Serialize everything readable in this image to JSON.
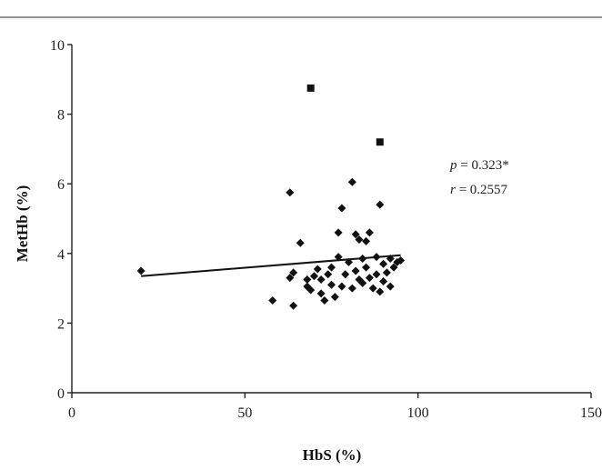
{
  "chart_data": {
    "type": "scatter",
    "xlabel": "HbS (%)",
    "ylabel": "MetHb (%)",
    "xlim": [
      0,
      150
    ],
    "ylim": [
      0,
      10
    ],
    "x_ticks": [
      0,
      50,
      100,
      150
    ],
    "y_ticks": [
      0,
      2,
      4,
      6,
      8,
      10
    ],
    "x_tick_labels": [
      "0",
      "50",
      "100",
      "150"
    ],
    "y_tick_labels": [
      "0",
      "2",
      "4",
      "6",
      "8",
      "10"
    ],
    "grid": false,
    "annotations": [
      {
        "var": "p",
        "text": " = 0.323*"
      },
      {
        "var": "r",
        "text": " = 0.2557"
      }
    ],
    "trendline": {
      "x": [
        20,
        95
      ],
      "y": [
        3.35,
        3.95
      ]
    },
    "points": [
      {
        "x": 20,
        "y": 3.5
      },
      {
        "x": 58,
        "y": 2.65
      },
      {
        "x": 63,
        "y": 3.3
      },
      {
        "x": 63,
        "y": 5.75
      },
      {
        "x": 64,
        "y": 2.5
      },
      {
        "x": 64,
        "y": 3.45
      },
      {
        "x": 66,
        "y": 4.3
      },
      {
        "x": 68,
        "y": 3.25
      },
      {
        "x": 68,
        "y": 3.05
      },
      {
        "x": 69,
        "y": 2.95
      },
      {
        "x": 70,
        "y": 3.35
      },
      {
        "x": 71,
        "y": 3.55
      },
      {
        "x": 72,
        "y": 2.85
      },
      {
        "x": 72,
        "y": 3.25
      },
      {
        "x": 73,
        "y": 2.65
      },
      {
        "x": 74,
        "y": 3.4
      },
      {
        "x": 75,
        "y": 3.6
      },
      {
        "x": 75,
        "y": 3.1
      },
      {
        "x": 76,
        "y": 2.75
      },
      {
        "x": 77,
        "y": 4.6
      },
      {
        "x": 77,
        "y": 3.9
      },
      {
        "x": 78,
        "y": 3.05
      },
      {
        "x": 78,
        "y": 5.3
      },
      {
        "x": 79,
        "y": 3.4
      },
      {
        "x": 80,
        "y": 3.75
      },
      {
        "x": 81,
        "y": 6.05
      },
      {
        "x": 81,
        "y": 3.0
      },
      {
        "x": 82,
        "y": 3.5
      },
      {
        "x": 82,
        "y": 4.55
      },
      {
        "x": 83,
        "y": 3.25
      },
      {
        "x": 83,
        "y": 4.4
      },
      {
        "x": 84,
        "y": 3.85
      },
      {
        "x": 84,
        "y": 3.15
      },
      {
        "x": 85,
        "y": 4.35
      },
      {
        "x": 85,
        "y": 3.6
      },
      {
        "x": 86,
        "y": 3.3
      },
      {
        "x": 86,
        "y": 4.6
      },
      {
        "x": 87,
        "y": 3.0
      },
      {
        "x": 88,
        "y": 3.9
      },
      {
        "x": 88,
        "y": 3.4
      },
      {
        "x": 89,
        "y": 5.4
      },
      {
        "x": 89,
        "y": 2.9
      },
      {
        "x": 90,
        "y": 3.7
      },
      {
        "x": 90,
        "y": 3.2
      },
      {
        "x": 91,
        "y": 3.45
      },
      {
        "x": 92,
        "y": 3.85
      },
      {
        "x": 92,
        "y": 3.05
      },
      {
        "x": 93,
        "y": 3.6
      },
      {
        "x": 94,
        "y": 3.75
      },
      {
        "x": 95,
        "y": 3.8
      }
    ],
    "outliers": [
      {
        "x": 69,
        "y": 8.75
      },
      {
        "x": 89,
        "y": 7.2
      }
    ]
  }
}
